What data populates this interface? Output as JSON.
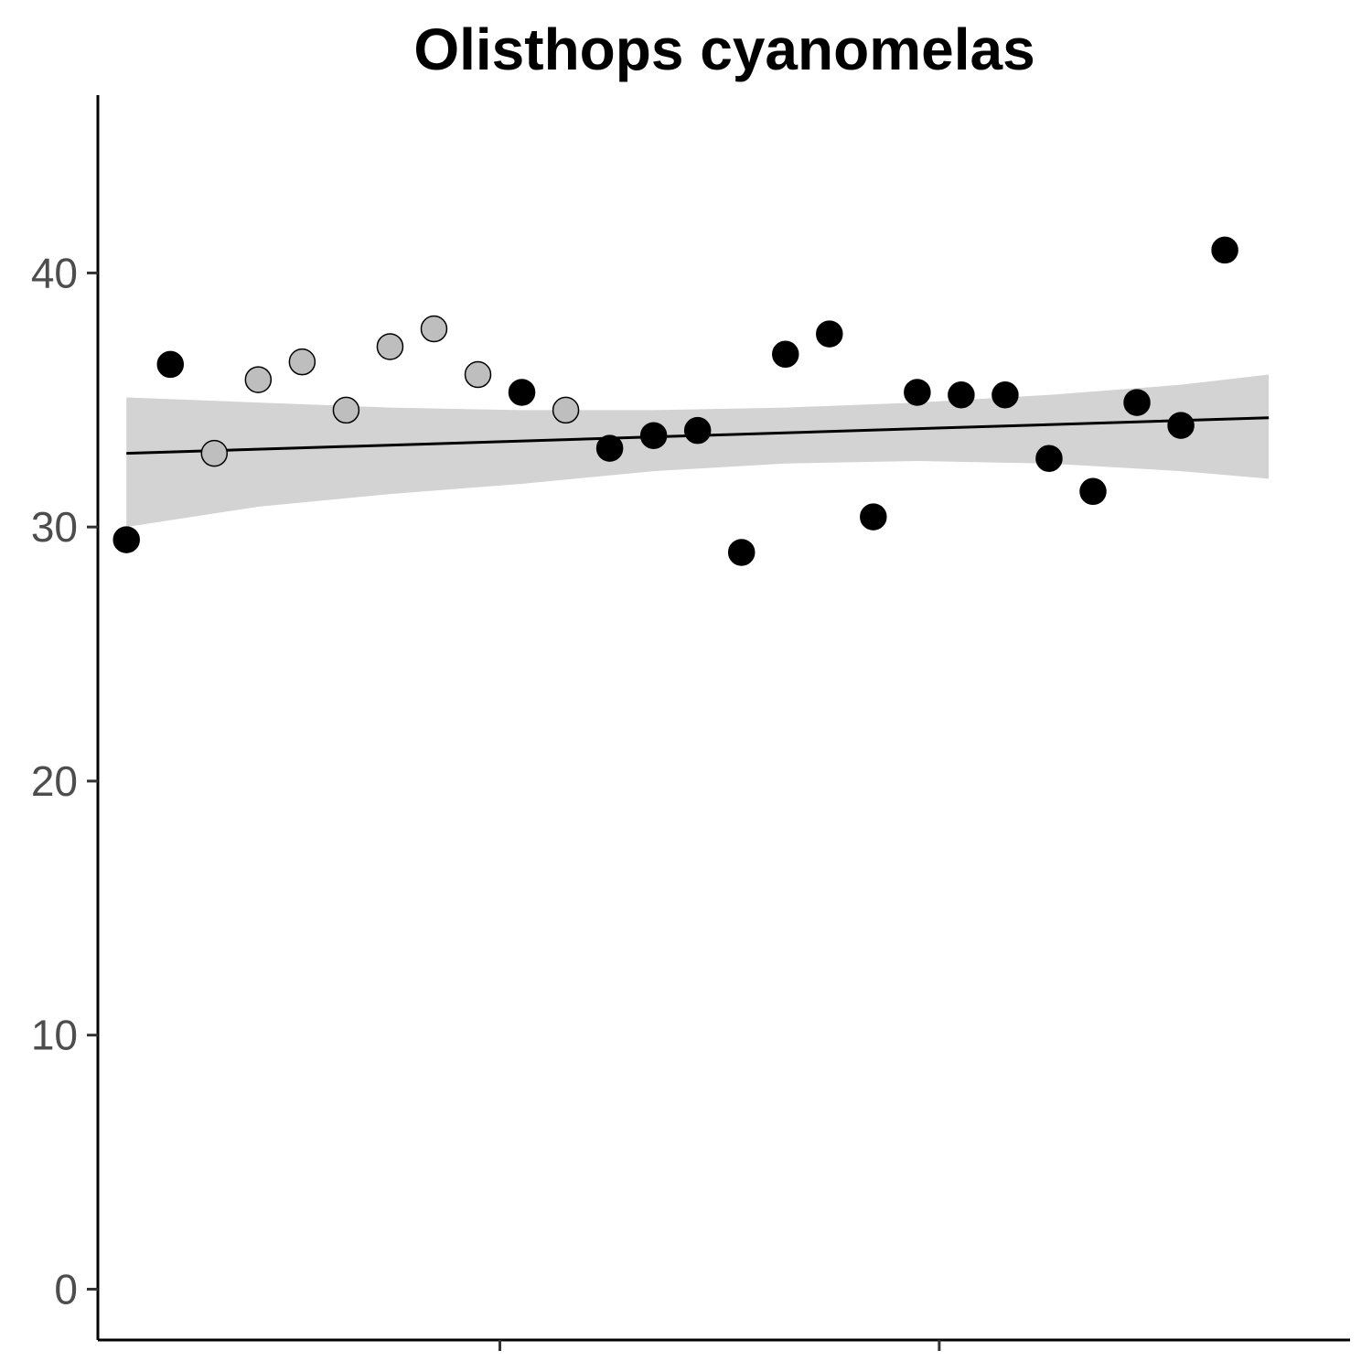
{
  "chart_data": {
    "type": "scatter",
    "title": "Olisthops cyanomelas",
    "xlabel": "",
    "ylabel": "",
    "xlim": [
      0.35,
      28.85
    ],
    "ylim": [
      -2,
      47
    ],
    "y_ticks": [
      0,
      10,
      20,
      30,
      40
    ],
    "x_ticks": [
      9.5,
      19.5
    ],
    "x_tick_labels": [
      "",
      ""
    ],
    "grid": false,
    "legend": "none",
    "series": [
      {
        "fill": "#bebebe",
        "x": [
          3,
          4,
          5,
          6,
          7,
          8,
          9,
          11
        ],
        "y": [
          32.9,
          35.8,
          36.5,
          34.6,
          37.1,
          37.8,
          36.0,
          34.6
        ]
      },
      {
        "fill": "#000000",
        "x": [
          1,
          2,
          10,
          12,
          13,
          14,
          15,
          16,
          17,
          18,
          19,
          20,
          21,
          22,
          23,
          24,
          25,
          26,
          27
        ],
        "y": [
          29.5,
          36.4,
          35.3,
          33.1,
          33.6,
          33.8,
          29.0,
          36.8,
          37.6,
          30.4,
          35.3,
          35.2,
          35.2,
          32.7,
          31.4,
          34.9,
          34.0,
          40.9,
          null
        ]
      }
    ],
    "trend_line": {
      "x": [
        1,
        27
      ],
      "y": [
        32.9,
        34.3
      ]
    },
    "confidence_band": {
      "x": [
        1,
        4,
        7,
        10,
        13,
        16,
        19,
        22,
        25,
        27
      ],
      "lower": [
        30.0,
        30.8,
        31.3,
        31.7,
        32.2,
        32.5,
        32.6,
        32.5,
        32.2,
        31.9
      ],
      "upper": [
        35.1,
        34.9,
        34.7,
        34.6,
        34.6,
        34.7,
        34.9,
        35.2,
        35.6,
        36.0
      ]
    },
    "colors": {
      "band": "#d3d3d3",
      "line": "#000000",
      "axis": "#000000",
      "tick_text": "#4d4d4d"
    }
  }
}
